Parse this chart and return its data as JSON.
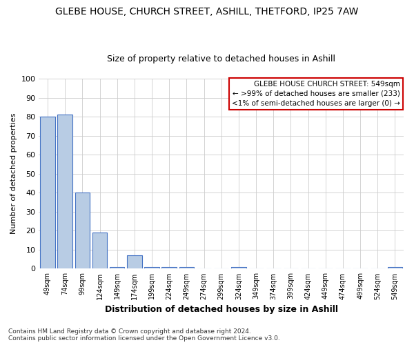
{
  "title": "GLEBE HOUSE, CHURCH STREET, ASHILL, THETFORD, IP25 7AW",
  "subtitle": "Size of property relative to detached houses in Ashill",
  "xlabel": "Distribution of detached houses by size in Ashill",
  "ylabel": "Number of detached properties",
  "categories": [
    "49sqm",
    "74sqm",
    "99sqm",
    "124sqm",
    "149sqm",
    "174sqm",
    "199sqm",
    "224sqm",
    "249sqm",
    "274sqm",
    "299sqm",
    "324sqm",
    "349sqm",
    "374sqm",
    "399sqm",
    "424sqm",
    "449sqm",
    "474sqm",
    "499sqm",
    "524sqm",
    "549sqm"
  ],
  "values": [
    80,
    81,
    40,
    19,
    1,
    7,
    1,
    1,
    1,
    0,
    0,
    1,
    0,
    0,
    0,
    0,
    0,
    0,
    0,
    0,
    1
  ],
  "bar_color": "#b8cce4",
  "bar_edge_color": "#4472c4",
  "ylim": [
    0,
    100
  ],
  "yticks": [
    0,
    10,
    20,
    30,
    40,
    50,
    60,
    70,
    80,
    90,
    100
  ],
  "annotation_line1": "GLEBE HOUSE CHURCH STREET: 549sqm",
  "annotation_line2": "← >99% of detached houses are smaller (233)",
  "annotation_line3": "<1% of semi-detached houses are larger (0) →",
  "annotation_box_color": "#cc0000",
  "footer_line1": "Contains HM Land Registry data © Crown copyright and database right 2024.",
  "footer_line2": "Contains public sector information licensed under the Open Government Licence v3.0.",
  "background_color": "#ffffff",
  "grid_color": "#cccccc"
}
